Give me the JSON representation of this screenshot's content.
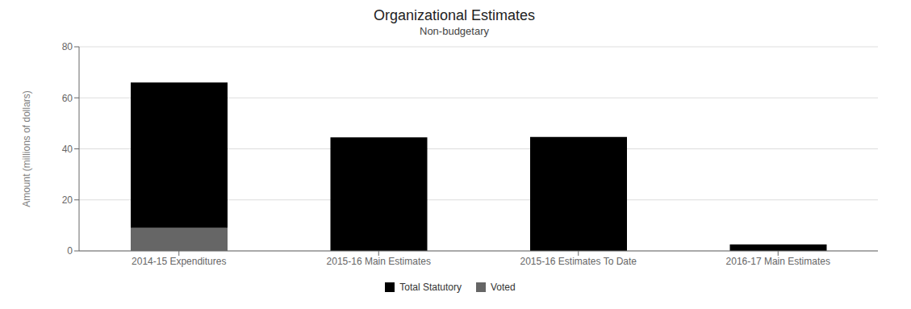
{
  "chart_data": {
    "type": "bar",
    "title": "Organizational Estimates",
    "subtitle": "Non-budgetary",
    "ylabel": "Amount (millions of dollars)",
    "categories": [
      "2014-15 Expenditures",
      "2015-16 Main Estimates",
      "2015-16 Estimates To Date",
      "2016-17 Main Estimates"
    ],
    "series": [
      {
        "name": "Total Statutory",
        "color": "#000000",
        "values": [
          57.0,
          44.5,
          44.7,
          2.5
        ]
      },
      {
        "name": "Voted",
        "color": "#666666",
        "values": [
          9.0,
          0.0,
          0.0,
          0.0
        ]
      }
    ],
    "stacked": true,
    "ylim": [
      0,
      80
    ],
    "yticks": [
      0,
      20,
      40,
      60,
      80
    ],
    "grid": true,
    "legend": "bottom"
  }
}
